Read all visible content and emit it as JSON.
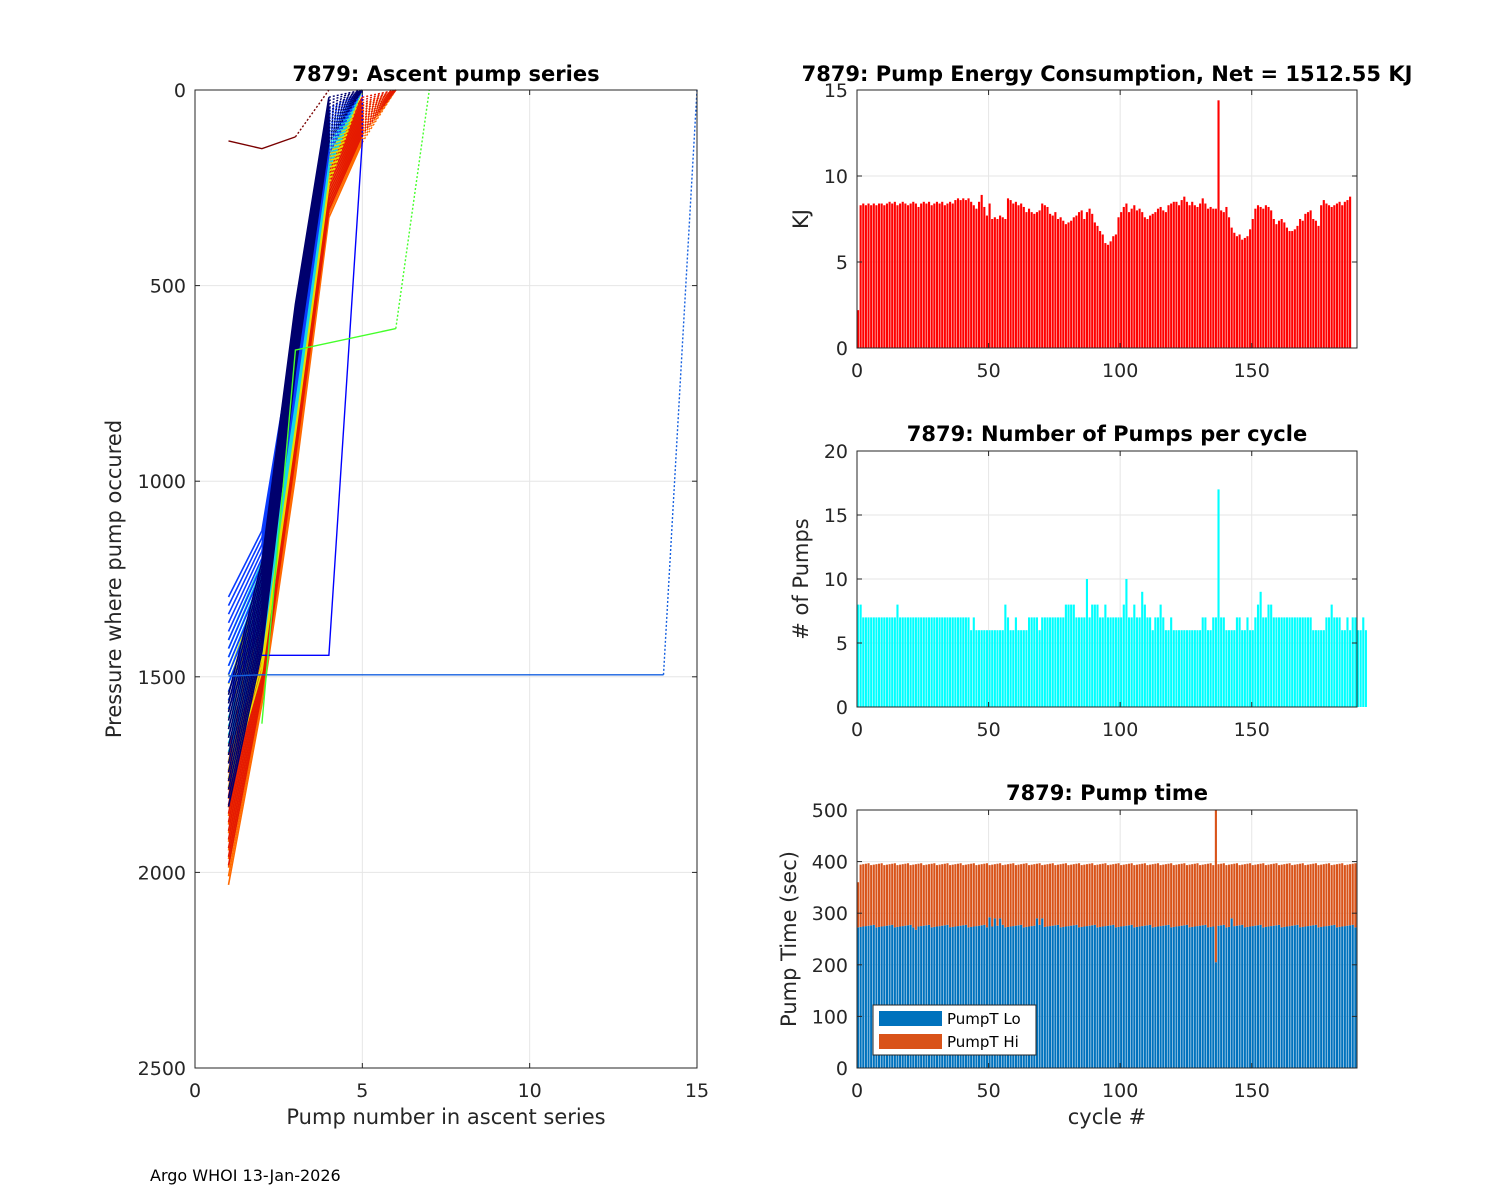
{
  "footer": "Argo WHOI 13-Jan-2026",
  "chart_data": [
    {
      "id": "ascent",
      "type": "line",
      "title": "7879: Ascent pump series",
      "xlabel": "Pump number in ascent series",
      "ylabel": "Pressure where pump occured",
      "xlim": [
        0,
        15
      ],
      "ylim": [
        0,
        2500
      ],
      "y_reversed": true,
      "xticks": [
        0,
        5,
        10,
        15
      ],
      "yticks": [
        0,
        500,
        1000,
        1500,
        2000,
        2500
      ],
      "grid": true,
      "colormap": "jet",
      "series": [
        {
          "name": "bundle-orange",
          "color": "#ff6a00",
          "x": [
            1,
            2,
            3,
            4,
            5,
            6
          ],
          "y": [
            1900,
            1460,
            900,
            260,
            90,
            0
          ]
        },
        {
          "name": "bundle-red",
          "color": "#e51a00",
          "x": [
            1,
            2,
            3,
            4,
            5,
            6
          ],
          "y": [
            1850,
            1430,
            850,
            240,
            70,
            0
          ]
        },
        {
          "name": "bundle-yellow",
          "color": "#e8e000",
          "x": [
            1,
            2,
            3,
            4,
            5
          ],
          "y": [
            1650,
            1380,
            800,
            190,
            0
          ]
        },
        {
          "name": "bundle-cyan",
          "color": "#19d6e6",
          "x": [
            1,
            2,
            3,
            4,
            5
          ],
          "y": [
            1560,
            1330,
            760,
            150,
            0
          ]
        },
        {
          "name": "bundle-blue",
          "color": "#0a3cff",
          "x": [
            1,
            2,
            3,
            4,
            5
          ],
          "y": [
            1450,
            1250,
            700,
            110,
            0
          ]
        },
        {
          "name": "bundle-navy",
          "color": "#00006e",
          "x": [
            1,
            2,
            3,
            4,
            5
          ],
          "y": [
            1700,
            1330,
            640,
            80,
            0
          ]
        },
        {
          "name": "long-series",
          "color": "#1560e0",
          "x": [
            1,
            2,
            14,
            15
          ],
          "y": [
            1498,
            1495,
            1495,
            0
          ]
        },
        {
          "name": "step-series",
          "color": "#0000ff",
          "x": [
            2,
            4,
            5,
            5
          ],
          "y": [
            1445,
            1445,
            130,
            0
          ]
        },
        {
          "name": "green-series",
          "color": "#44ff2a",
          "x": [
            2,
            3,
            6,
            7
          ],
          "y": [
            1620,
            665,
            610,
            0
          ]
        },
        {
          "name": "shallow-series",
          "color": "#7a0000",
          "x": [
            1,
            2,
            3,
            4
          ],
          "y": [
            130,
            150,
            120,
            0
          ]
        }
      ]
    },
    {
      "id": "energy",
      "type": "bar",
      "title": "7879: Pump Energy Consumption,  Net = 1512.55 KJ",
      "xlabel": "",
      "ylabel": "KJ",
      "xlim": [
        0,
        190
      ],
      "ylim": [
        0,
        15
      ],
      "xticks": [
        0,
        50,
        100,
        150
      ],
      "yticks": [
        0,
        5,
        10,
        15
      ],
      "grid": true,
      "color": "#ff0000",
      "values": [
        2.2,
        8.3,
        8.4,
        8.3,
        8.4,
        8.3,
        8.4,
        8.3,
        8.4,
        8.4,
        8.3,
        8.4,
        8.5,
        8.4,
        8.5,
        8.3,
        8.4,
        8.5,
        8.4,
        8.3,
        8.4,
        8.5,
        8.4,
        8.2,
        8.4,
        8.5,
        8.4,
        8.5,
        8.3,
        8.4,
        8.5,
        8.4,
        8.5,
        8.3,
        8.4,
        8.5,
        8.4,
        8.6,
        8.7,
        8.6,
        8.7,
        8.6,
        8.7,
        8.5,
        8.3,
        8.1,
        8.5,
        8.9,
        8.2,
        7.7,
        8.4,
        7.5,
        7.6,
        7.5,
        7.7,
        7.6,
        7.5,
        8.7,
        8.6,
        8.4,
        8.5,
        8.3,
        8.4,
        8.2,
        7.9,
        8.1,
        7.9,
        7.8,
        7.9,
        8.0,
        8.4,
        8.3,
        8.2,
        7.8,
        7.7,
        7.9,
        7.5,
        7.6,
        7.4,
        7.2,
        7.3,
        7.4,
        7.6,
        7.7,
        7.9,
        8.0,
        7.5,
        7.9,
        8.1,
        7.8,
        7.3,
        7.1,
        6.8,
        6.6,
        6.1,
        6.0,
        6.2,
        6.5,
        6.6,
        7.6,
        7.9,
        8.2,
        8.4,
        7.9,
        8.1,
        8.3,
        8.0,
        8.1,
        7.9,
        7.6,
        7.5,
        7.7,
        7.8,
        7.9,
        8.1,
        8.2,
        8.0,
        7.9,
        8.3,
        8.4,
        8.5,
        8.5,
        8.3,
        8.6,
        8.8,
        8.5,
        8.3,
        8.5,
        8.3,
        8.2,
        8.4,
        8.7,
        8.4,
        8.1,
        8.2,
        8.1,
        8.1,
        14.4,
        8.0,
        7.9,
        8.2,
        7.6,
        7.0,
        6.7,
        6.5,
        6.6,
        6.3,
        6.4,
        6.5,
        6.9,
        7.5,
        8.1,
        8.3,
        8.2,
        8.1,
        8.3,
        8.2,
        8.0,
        7.5,
        7.2,
        7.4,
        7.5,
        7.3,
        7.0,
        6.8,
        6.8,
        6.9,
        7.1,
        7.5,
        7.4,
        7.8,
        7.9,
        8.0,
        7.5,
        7.4,
        7.1,
        8.3,
        8.6,
        8.4,
        8.3,
        8.2,
        8.3,
        8.4,
        8.5,
        8.3,
        8.5,
        8.6,
        8.8
      ]
    },
    {
      "id": "pumps",
      "type": "bar",
      "title": "7879: Number of Pumps per cycle",
      "xlabel": "",
      "ylabel": "# of Pumps",
      "xlim": [
        0,
        190
      ],
      "ylim": [
        0,
        20
      ],
      "xticks": [
        0,
        50,
        100,
        150
      ],
      "yticks": [
        0,
        5,
        10,
        15,
        20
      ],
      "grid": true,
      "color": "#00ffff",
      "values": [
        8,
        8,
        7,
        7,
        7,
        7,
        7,
        7,
        7,
        7,
        7,
        7,
        7,
        7,
        7,
        8,
        7,
        7,
        7,
        7,
        7,
        7,
        7,
        7,
        7,
        7,
        7,
        7,
        7,
        7,
        7,
        7,
        7,
        7,
        7,
        7,
        7,
        7,
        7,
        7,
        7,
        7,
        7,
        6,
        7,
        6,
        6,
        6,
        6,
        6,
        6,
        6,
        6,
        6,
        6,
        6,
        8,
        7,
        6,
        6,
        7,
        6,
        6,
        6,
        6,
        7,
        7,
        7,
        7,
        6,
        7,
        7,
        7,
        7,
        7,
        7,
        7,
        7,
        7,
        8,
        8,
        8,
        8,
        7,
        7,
        7,
        7,
        10,
        7,
        8,
        8,
        8,
        7,
        7,
        8,
        7,
        7,
        7,
        7,
        7,
        7,
        8,
        10,
        7,
        7,
        8,
        7,
        7,
        9,
        8,
        7,
        7,
        6,
        7,
        7,
        8,
        7,
        6,
        6,
        7,
        6,
        6,
        6,
        6,
        6,
        6,
        6,
        6,
        6,
        6,
        6,
        7,
        7,
        6,
        6,
        7,
        7,
        17,
        7,
        7,
        6,
        6,
        6,
        6,
        7,
        7,
        6,
        6,
        7,
        6,
        6,
        7,
        8,
        9,
        7,
        7,
        8,
        8,
        7,
        7,
        7,
        7,
        7,
        7,
        7,
        7,
        7,
        7,
        7,
        7,
        7,
        7,
        7,
        6,
        6,
        6,
        6,
        6,
        7,
        7,
        8,
        7,
        7,
        7,
        6,
        6,
        7,
        6,
        7,
        7,
        6,
        6,
        7,
        6
      ]
    },
    {
      "id": "pumptime",
      "type": "bar",
      "stacked": true,
      "title": "7879: Pump time",
      "xlabel": "cycle #",
      "ylabel": "Pump Time (sec)",
      "xlim": [
        0,
        190
      ],
      "ylim": [
        0,
        500
      ],
      "xticks": [
        0,
        50,
        100,
        150
      ],
      "yticks": [
        0,
        100,
        200,
        300,
        400,
        500
      ],
      "grid": true,
      "legend": "bottom-left",
      "series": [
        {
          "name": "PumpT Lo",
          "color": "#0072bd",
          "base": 275,
          "spikes": [
            [
              22,
              268
            ],
            [
              50,
              292
            ],
            [
              52,
              290
            ],
            [
              54,
              290
            ],
            [
              68,
              290
            ],
            [
              70,
              290
            ],
            [
              136,
              205
            ],
            [
              142,
              290
            ]
          ]
        },
        {
          "name": "PumpT Hi",
          "color": "#d95319",
          "total": 395,
          "spikes": [
            [
              0,
              360
            ],
            [
              136,
              500
            ]
          ]
        }
      ]
    }
  ]
}
